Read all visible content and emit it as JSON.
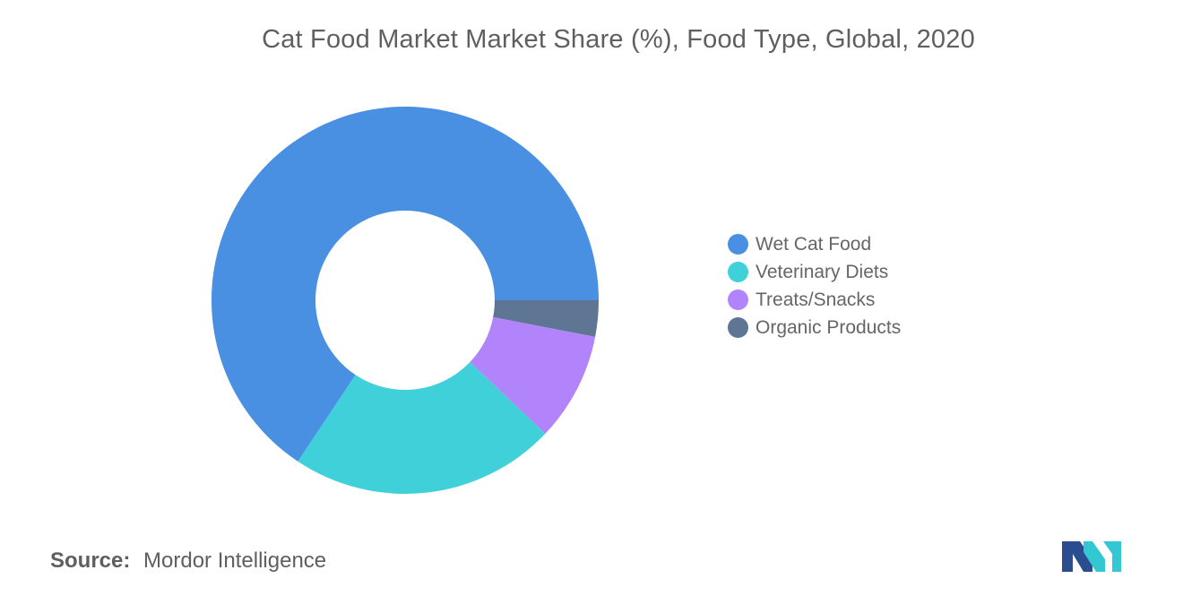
{
  "chart": {
    "title": "Cat Food Market Market Share (%), Food Type, Global, 2020"
  },
  "chart_data": {
    "type": "pie",
    "title": "Cat Food Market Market Share (%), Food Type, Global, 2020",
    "labels": [
      "Wet Cat Food",
      "Veterinary Diets",
      "Treats/Snacks",
      "Organic Products"
    ],
    "values": [
      65,
      22,
      9,
      3
    ],
    "colors": [
      "#4a90e2",
      "#40d0da",
      "#b184fb",
      "#5f7594"
    ],
    "legend": "right",
    "donut": true
  },
  "source": {
    "prefix": "Source:",
    "text": "Mordor Intelligence"
  },
  "logo": {
    "icon": "mordor-intelligence-logo",
    "colors": [
      "#2a4d8f",
      "#32c7d2"
    ]
  }
}
